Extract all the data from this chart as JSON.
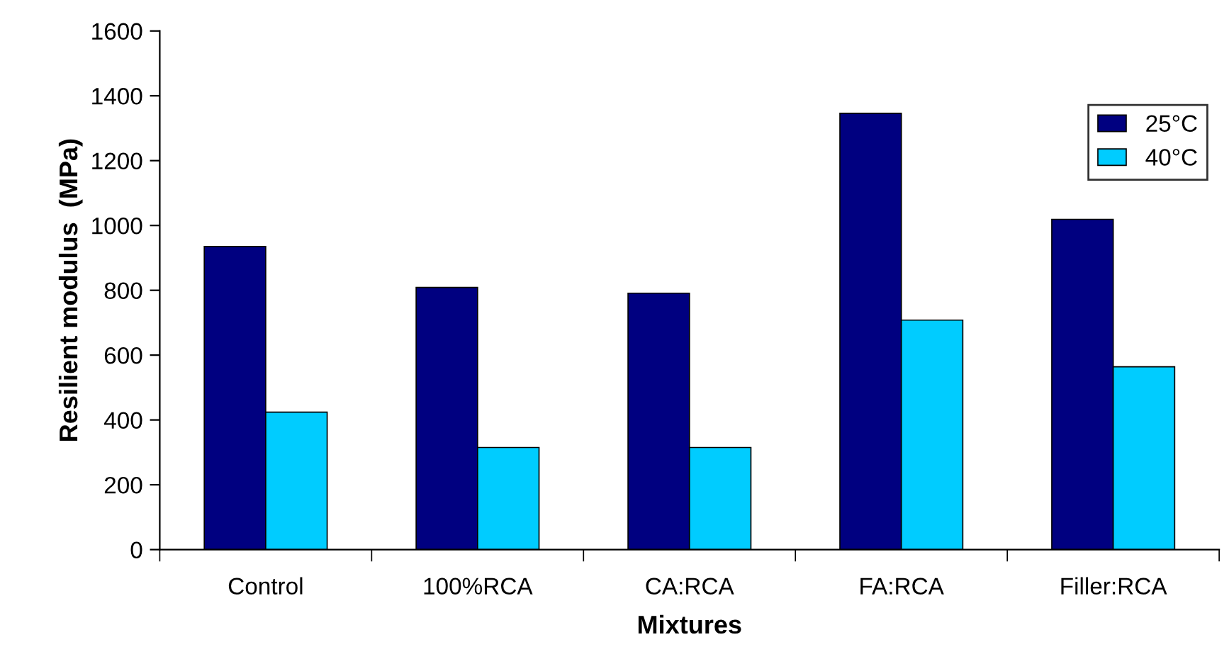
{
  "chart_data": {
    "type": "bar",
    "xlabel": "Mixtures",
    "ylabel": "Resilient modulus  (MPa)",
    "categories": [
      "Control",
      "100%RCA",
      "CA:RCA",
      "FA:RCA",
      "Filler:RCA"
    ],
    "series": [
      {
        "name": "25°C",
        "color": "#000080",
        "values": [
          935,
          809,
          791,
          1346,
          1019
        ]
      },
      {
        "name": "40°C",
        "color": "#00ccff",
        "values": [
          424,
          315,
          315,
          708,
          564
        ]
      }
    ],
    "ylim": [
      0,
      1600
    ],
    "yticks": [
      0,
      200,
      400,
      600,
      800,
      1000,
      1200,
      1400,
      1600
    ],
    "grid": false,
    "legend": "top right"
  }
}
